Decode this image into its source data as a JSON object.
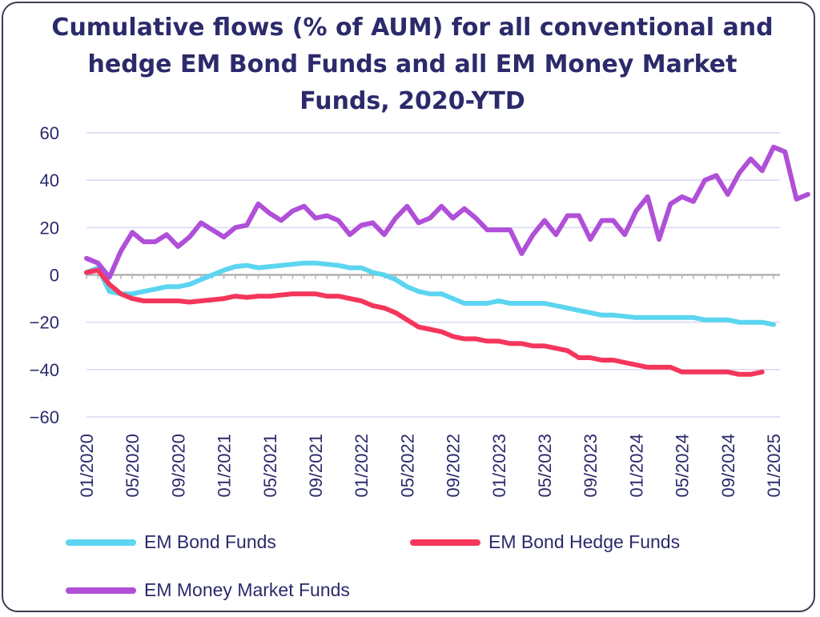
{
  "chart_data": {
    "type": "line",
    "title": "Cumulative flows (% of AUM) for all conventional and hedge EM Bond Funds and all EM Money Market Funds, 2020-YTD",
    "xlabel": "",
    "ylabel": "",
    "ylim": [
      -60,
      60
    ],
    "yticks": [
      60,
      40,
      20,
      0,
      -20,
      -40,
      -60
    ],
    "ytick_labels": [
      "60",
      "40",
      "20",
      "0",
      "−20",
      "−40",
      "−60"
    ],
    "x_start": "01/2020",
    "xtick_labels": [
      "01/2020",
      "05/2020",
      "09/2020",
      "01/2021",
      "05/2021",
      "09/2021",
      "01/2022",
      "05/2022",
      "09/2022",
      "01/2023",
      "05/2023",
      "09/2023",
      "01/2024",
      "05/2024",
      "09/2024",
      "01/2025"
    ],
    "grid": true,
    "legend_position": "bottom",
    "series": [
      {
        "name": "EM Bond Funds",
        "color": "#5bd5f0",
        "values": [
          1,
          3,
          -7,
          -8,
          -8,
          -7,
          -6,
          -5,
          -5,
          -4,
          -2,
          0,
          2,
          3.5,
          4,
          3,
          3.5,
          4,
          4.5,
          5,
          5,
          4.5,
          4,
          3,
          3,
          1,
          0,
          -2,
          -5,
          -7,
          -8,
          -8,
          -10,
          -12,
          -12,
          -12,
          -11,
          -12,
          -12,
          -12,
          -12,
          -13,
          -14,
          -15,
          -16,
          -17,
          -17,
          -17.5,
          -18,
          -18,
          -18,
          -18,
          -18,
          -18,
          -19,
          -19,
          -19,
          -20,
          -20,
          -20,
          -21
        ]
      },
      {
        "name": "EM Bond Hedge Funds",
        "color": "#f5365c",
        "values": [
          1,
          2,
          -4,
          -8,
          -10,
          -11,
          -11,
          -11,
          -11,
          -11.5,
          -11,
          -10.5,
          -10,
          -9,
          -9.5,
          -9,
          -9,
          -8.5,
          -8,
          -8,
          -8,
          -9,
          -9,
          -10,
          -11,
          -13,
          -14,
          -16,
          -19,
          -22,
          -23,
          -24,
          -26,
          -27,
          -27,
          -28,
          -28,
          -29,
          -29,
          -30,
          -30,
          -31,
          -32,
          -35,
          -35,
          -36,
          -36,
          -37,
          -38,
          -39,
          -39,
          -39,
          -41,
          -41,
          -41,
          -41,
          -41,
          -42,
          -42,
          -41
        ]
      },
      {
        "name": "EM Money Market Funds",
        "color": "#b04fd8",
        "values": [
          7,
          5,
          -1,
          10,
          18,
          14,
          14,
          17,
          12,
          16,
          22,
          19,
          16,
          20,
          21,
          30,
          26,
          23,
          27,
          29,
          24,
          25,
          23,
          17,
          21,
          22,
          17,
          24,
          29,
          22,
          24,
          29,
          24,
          28,
          24,
          19,
          19,
          19,
          9,
          17,
          23,
          17,
          25,
          25,
          15,
          23,
          23,
          17,
          27,
          33,
          15,
          30,
          33,
          31,
          40,
          42,
          34,
          43,
          49,
          44,
          54,
          52,
          32,
          34
        ]
      }
    ]
  }
}
